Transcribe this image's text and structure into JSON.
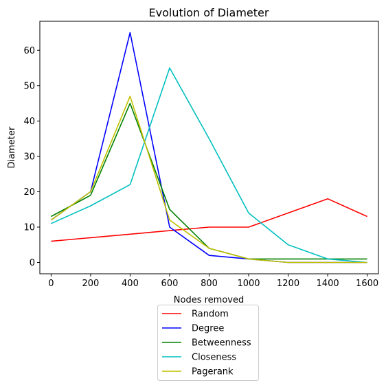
{
  "chart_data": {
    "type": "line",
    "title": "Evolution of Diameter",
    "xlabel": "Nodes removed",
    "ylabel": "Diameter",
    "x": [
      0,
      200,
      400,
      600,
      800,
      1000,
      1200,
      1400,
      1600
    ],
    "xlim": [
      -57,
      1657
    ],
    "ylim": [
      -3.2,
      68.2
    ],
    "xticks": [
      "0",
      "200",
      "400",
      "600",
      "800",
      "1000",
      "1200",
      "1400",
      "1600"
    ],
    "yticks": [
      "0",
      "10",
      "20",
      "30",
      "40",
      "50",
      "60"
    ],
    "grid": false,
    "legend_position": "below the axes, centered",
    "series": [
      {
        "name": "Random",
        "color": "#ff0000",
        "values": [
          6,
          7,
          8,
          9,
          10,
          10,
          14,
          18,
          13
        ]
      },
      {
        "name": "Degree",
        "color": "#0000ff",
        "values": [
          12,
          20,
          65,
          10,
          2,
          1,
          0,
          0,
          0
        ]
      },
      {
        "name": "Betweenness",
        "color": "#008000",
        "values": [
          13,
          19,
          45,
          15,
          4,
          1,
          1,
          1,
          1
        ]
      },
      {
        "name": "Closeness",
        "color": "#00bfbf",
        "values": [
          11,
          16,
          22,
          55,
          35,
          14,
          5,
          1,
          0
        ]
      },
      {
        "name": "Pagerank",
        "color": "#bfbf00",
        "values": [
          12,
          20,
          47,
          12,
          4,
          1,
          0,
          0,
          0
        ]
      }
    ]
  }
}
